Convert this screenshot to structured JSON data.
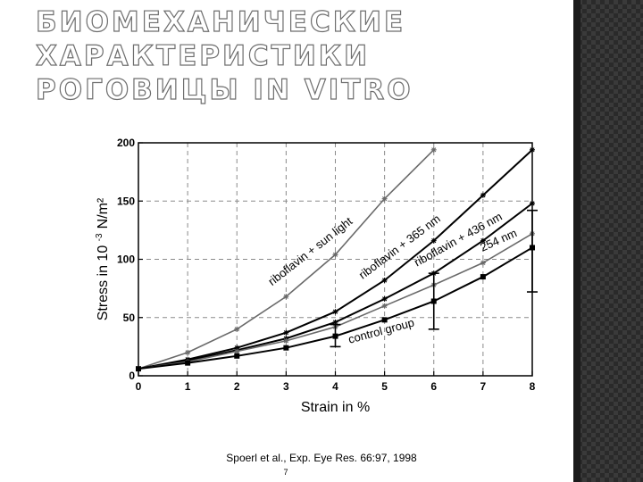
{
  "slide": {
    "title": "Биомеханические характеристики роговицы in vitro",
    "citation": "Spoerl et al., Exp. Eye Res. 66:97, 1998",
    "page_number": "7"
  },
  "chart_data": {
    "type": "line",
    "xlabel": "Strain  in %",
    "ylabel": "Stress  in 10",
    "ylabel_exp": "-3",
    "ylabel_unit": "N/m²",
    "xlim": [
      0,
      8
    ],
    "ylim": [
      0,
      200
    ],
    "x_ticks": [
      0,
      1,
      2,
      3,
      4,
      5,
      6,
      7,
      8
    ],
    "y_ticks": [
      0,
      50,
      100,
      150,
      200
    ],
    "grid": true,
    "x": [
      0,
      1,
      2,
      3,
      4,
      5,
      6,
      7,
      8
    ],
    "series": [
      {
        "name": "riboflavin + sun light",
        "values": [
          6,
          20,
          40,
          68,
          104,
          152,
          194,
          null,
          null
        ],
        "color": "#6a6a6a",
        "marker": "star"
      },
      {
        "name": "riboflavin + 365 nm",
        "values": [
          6,
          14,
          24,
          37,
          55,
          82,
          116,
          155,
          194
        ],
        "color": "#000000",
        "marker": "star"
      },
      {
        "name": "riboflavin + 436 nm",
        "values": [
          6,
          13,
          22,
          32,
          46,
          66,
          88,
          116,
          148
        ],
        "color": "#000000",
        "marker": "star"
      },
      {
        "name": "254 nm",
        "values": [
          6,
          12,
          21,
          30,
          42,
          60,
          78,
          97,
          122
        ],
        "color": "#6a6a6a",
        "marker": "star"
      },
      {
        "name": "control group",
        "values": [
          6,
          11,
          17,
          24,
          34,
          48,
          64,
          85,
          110
        ],
        "color": "#000000",
        "marker": "square"
      }
    ],
    "error_bars": [
      {
        "x": 4,
        "low": 25,
        "high": 44
      },
      {
        "x": 6,
        "low": 40,
        "high": 88
      },
      {
        "x": 8,
        "low": 72,
        "high": 142
      }
    ]
  }
}
